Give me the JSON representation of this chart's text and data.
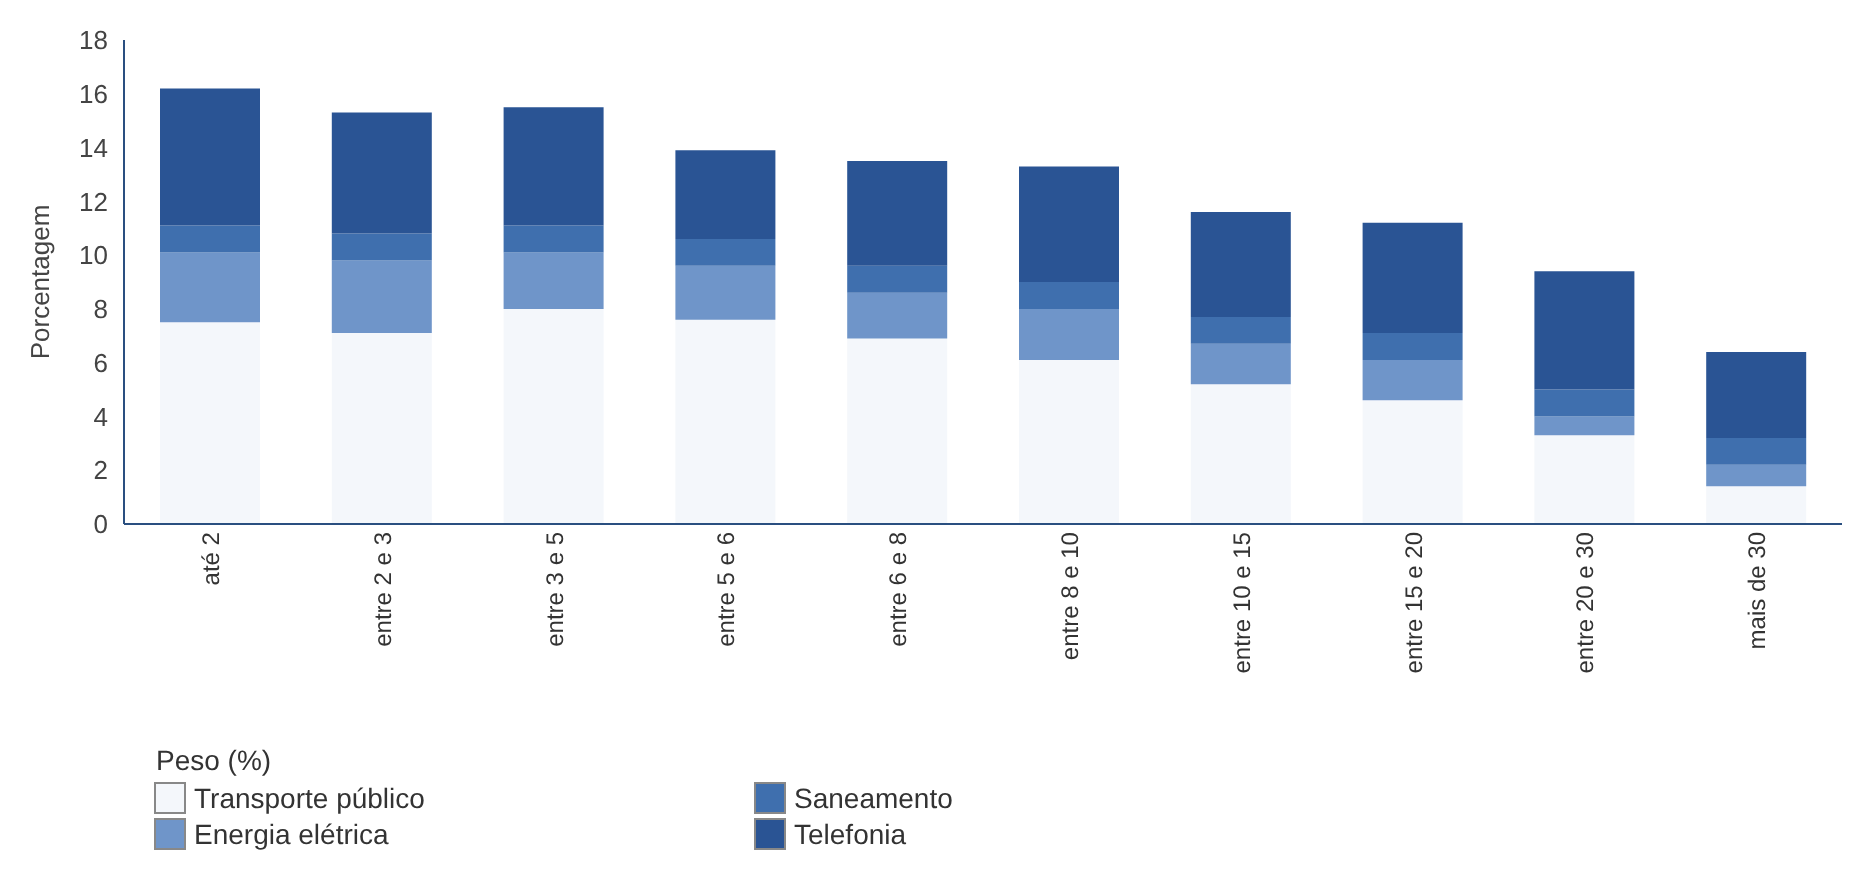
{
  "chart_data": {
    "type": "bar",
    "stacked": true,
    "ylabel": "Porcentagem",
    "legend_title": "Peso (%)",
    "legend": "bottom left",
    "grid": false,
    "categories": [
      "até 2",
      "entre 2 e 3",
      "entre 3 e 5",
      "entre 5 e 6",
      "entre 6 e 8",
      "entre 8 e 10",
      "entre 10 e 15",
      "entre 15 e 20",
      "entre 20 e 30",
      "mais de 30"
    ],
    "ylim": [
      0,
      18
    ],
    "yticks": [
      0,
      2,
      4,
      6,
      8,
      10,
      12,
      14,
      16,
      18
    ],
    "series": [
      {
        "name": "Transporte público",
        "color": "#f4f7fb",
        "values": [
          7.5,
          7.1,
          8.0,
          7.6,
          6.9,
          6.1,
          5.2,
          4.6,
          3.3,
          1.4
        ]
      },
      {
        "name": "Energia elétrica",
        "color": "#6f95c9",
        "values": [
          2.6,
          2.7,
          2.1,
          2.0,
          1.7,
          1.9,
          1.5,
          1.5,
          0.7,
          0.8
        ]
      },
      {
        "name": "Saneamento",
        "color": "#3f6fae",
        "values": [
          1.0,
          1.0,
          1.0,
          1.0,
          1.0,
          1.0,
          1.0,
          1.0,
          1.0,
          1.0
        ]
      },
      {
        "name": "Telefonia",
        "color": "#2a5494",
        "values": [
          5.1,
          4.5,
          4.4,
          3.3,
          3.9,
          4.3,
          3.9,
          4.1,
          4.4,
          3.2
        ]
      }
    ]
  }
}
